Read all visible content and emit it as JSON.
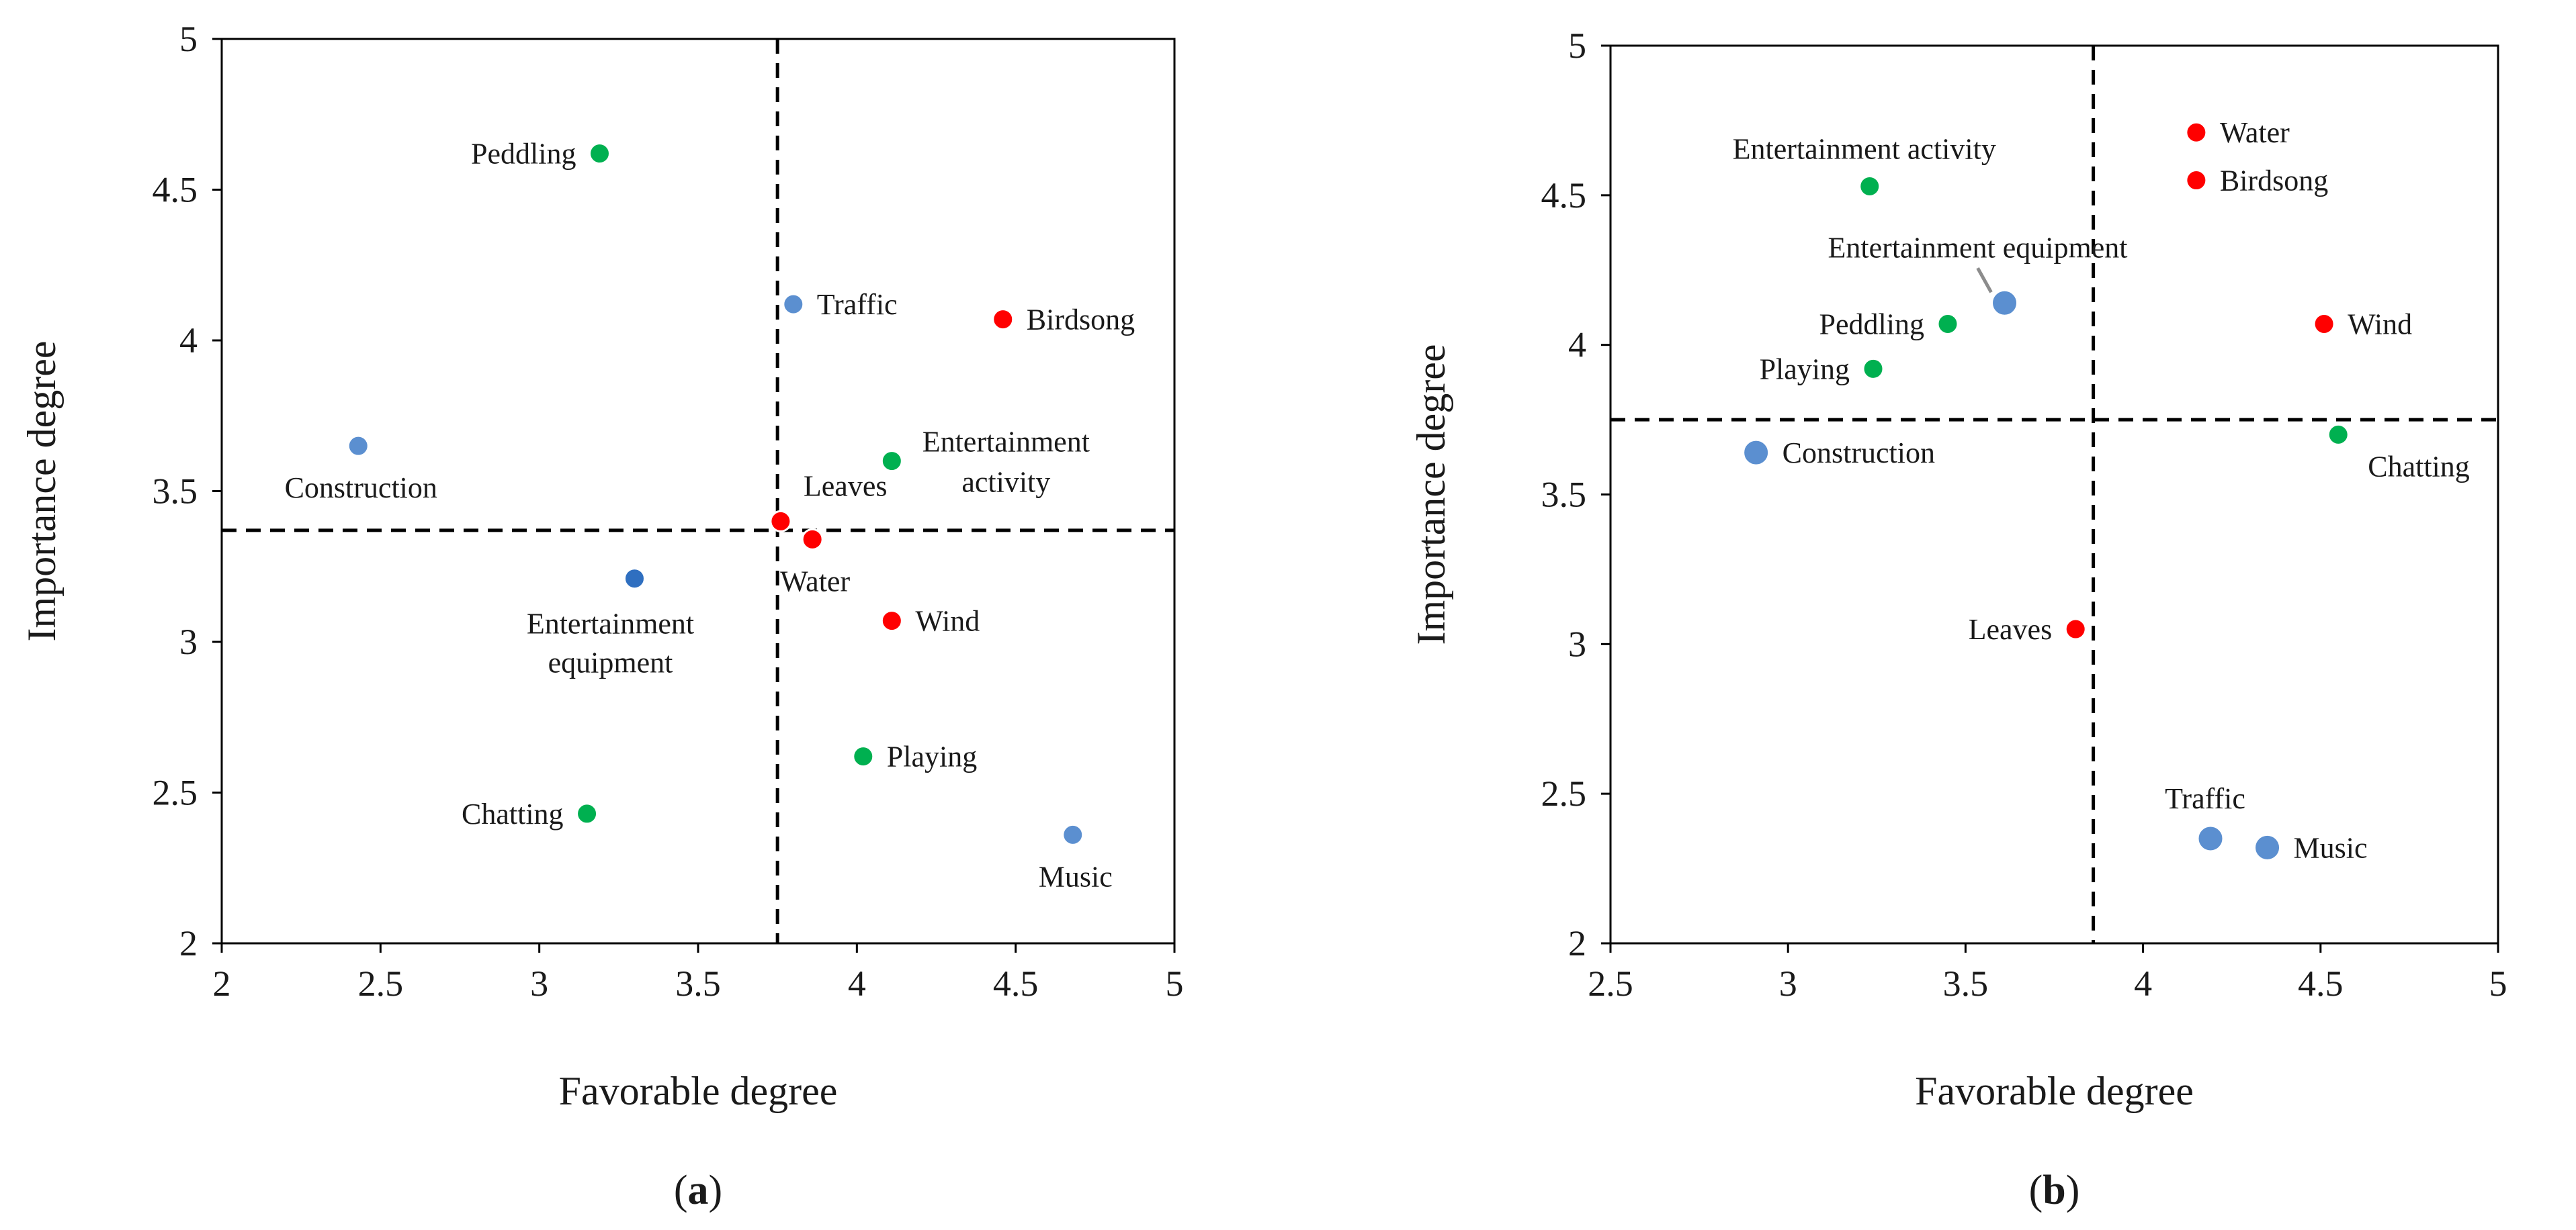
{
  "chart_data": [
    {
      "type": "scatter",
      "panel_label": "a",
      "caption_open": "(",
      "caption_close": ")",
      "xlabel": "Favorable degree",
      "ylabel": "Importance degree",
      "xlim": [
        2,
        5
      ],
      "ylim": [
        2,
        5
      ],
      "x_ticks": [
        2,
        2.5,
        3,
        3.5,
        4,
        4.5,
        5
      ],
      "y_ticks": [
        2,
        2.5,
        3,
        3.5,
        4,
        4.5,
        5
      ],
      "x_tick_labels": [
        "2",
        "2.5",
        "3",
        "3.5",
        "4",
        "4.5",
        "5"
      ],
      "y_tick_labels": [
        "2",
        "2.5",
        "3",
        "3.5",
        "4",
        "4.5",
        "5"
      ],
      "reference_lines": {
        "x": 3.75,
        "y": 3.37
      },
      "colors": {
        "natural": "#ff0000",
        "human": "#00b050",
        "mechanical": "#5b8fd0",
        "mechanical_dark": "#2f6fc0"
      },
      "points": [
        {
          "label_lines": [
            "Peddling"
          ],
          "x": 3.19,
          "y": 4.62,
          "color": "#00b050",
          "label_pos": "left"
        },
        {
          "label_lines": [
            "Traffic"
          ],
          "x": 3.8,
          "y": 4.12,
          "color": "#5b8fd0",
          "label_pos": "right"
        },
        {
          "label_lines": [
            "Birdsong"
          ],
          "x": 4.46,
          "y": 4.07,
          "color": "#ff0000",
          "label_pos": "right"
        },
        {
          "label_lines": [
            "Construction"
          ],
          "x": 2.43,
          "y": 3.65,
          "color": "#5b8fd0",
          "label_pos": "below"
        },
        {
          "label_lines": [
            "Entertainment",
            "activity"
          ],
          "x": 4.11,
          "y": 3.6,
          "color": "#00b050",
          "label_pos": "right-stack"
        },
        {
          "label_lines": [
            "Leaves"
          ],
          "x": 3.76,
          "y": 3.4,
          "color": "#ff0000",
          "label_pos": "above-right"
        },
        {
          "label_lines": [
            "Water"
          ],
          "x": 3.86,
          "y": 3.34,
          "color": "#ff0000",
          "label_pos": "below"
        },
        {
          "label_lines": [
            "Entertainment",
            "equipment"
          ],
          "x": 3.3,
          "y": 3.21,
          "color": "#2f6fc0",
          "label_pos": "below-stack"
        },
        {
          "label_lines": [
            "Wind"
          ],
          "x": 4.11,
          "y": 3.07,
          "color": "#ff0000",
          "label_pos": "right"
        },
        {
          "label_lines": [
            "Playing"
          ],
          "x": 4.02,
          "y": 2.62,
          "color": "#00b050",
          "label_pos": "right"
        },
        {
          "label_lines": [
            "Chatting"
          ],
          "x": 3.15,
          "y": 2.43,
          "color": "#00b050",
          "label_pos": "left"
        },
        {
          "label_lines": [
            "Music"
          ],
          "x": 4.68,
          "y": 2.36,
          "color": "#5b8fd0",
          "label_pos": "below"
        }
      ]
    },
    {
      "type": "scatter",
      "panel_label": "b",
      "caption_open": "(",
      "caption_close": ")",
      "xlabel": "Favorable degree",
      "ylabel": "Importance degree",
      "xlim": [
        2.5,
        5
      ],
      "ylim": [
        2,
        5
      ],
      "x_ticks": [
        2.5,
        3,
        3.5,
        4,
        4.5,
        5
      ],
      "y_ticks": [
        2,
        2.5,
        3,
        3.5,
        4,
        4.5,
        5
      ],
      "x_tick_labels": [
        "2.5",
        "3",
        "3.5",
        "4",
        "4.5",
        "5"
      ],
      "y_tick_labels": [
        "2",
        "2.5",
        "3",
        "3.5",
        "4",
        "4.5",
        "5"
      ],
      "reference_lines": {
        "x": 3.86,
        "y": 3.75
      },
      "colors": {
        "natural": "#ff0000",
        "human": "#00b050",
        "mechanical": "#5b8fd0"
      },
      "points": [
        {
          "label_lines": [
            "Water"
          ],
          "x": 4.15,
          "y": 4.71,
          "color": "#ff0000",
          "label_pos": "right"
        },
        {
          "label_lines": [
            "Entertainment activity"
          ],
          "x": 3.23,
          "y": 4.53,
          "color": "#00b050",
          "label_pos": "above"
        },
        {
          "label_lines": [
            "Birdsong"
          ],
          "x": 4.15,
          "y": 4.55,
          "color": "#ff0000",
          "label_pos": "right"
        },
        {
          "label_lines": [
            "Entertainment equipment"
          ],
          "x": 3.61,
          "y": 4.14,
          "color": "#5b8fd0",
          "label_pos": "above-leader",
          "big": true
        },
        {
          "label_lines": [
            "Peddling"
          ],
          "x": 3.45,
          "y": 4.07,
          "color": "#00b050",
          "label_pos": "left"
        },
        {
          "label_lines": [
            "Wind"
          ],
          "x": 4.51,
          "y": 4.07,
          "color": "#ff0000",
          "label_pos": "right"
        },
        {
          "label_lines": [
            "Playing"
          ],
          "x": 3.24,
          "y": 3.92,
          "color": "#00b050",
          "label_pos": "left"
        },
        {
          "label_lines": [
            "Chatting"
          ],
          "x": 4.55,
          "y": 3.7,
          "color": "#00b050",
          "label_pos": "below-right"
        },
        {
          "label_lines": [
            "Construction"
          ],
          "x": 2.91,
          "y": 3.64,
          "color": "#5b8fd0",
          "label_pos": "right",
          "big": true
        },
        {
          "label_lines": [
            "Leaves"
          ],
          "x": 3.81,
          "y": 3.05,
          "color": "#ff0000",
          "label_pos": "left"
        },
        {
          "label_lines": [
            "Traffic"
          ],
          "x": 4.19,
          "y": 2.35,
          "color": "#5b8fd0",
          "label_pos": "above",
          "big": true
        },
        {
          "label_lines": [
            "Music"
          ],
          "x": 4.35,
          "y": 2.32,
          "color": "#5b8fd0",
          "label_pos": "right",
          "big": true
        }
      ]
    }
  ]
}
